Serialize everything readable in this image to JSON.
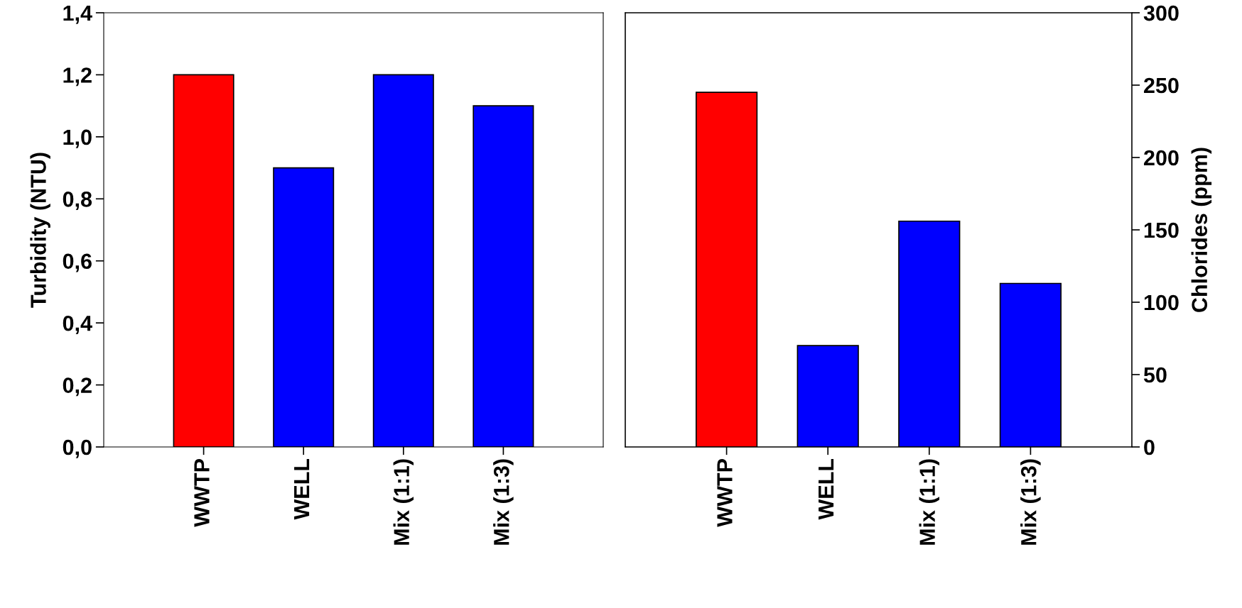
{
  "chart_data": [
    {
      "type": "bar",
      "categories": [
        "WWTP",
        "WELL",
        "Mix (1:1)",
        "Mix (1:3)"
      ],
      "ylabel": "Turbidity (NTU)",
      "series": [
        {
          "values": [
            1.2,
            0.9,
            1.2,
            1.1
          ],
          "colors": [
            "#ff0000",
            "#0000ff",
            "#0000ff",
            "#0000ff"
          ]
        }
      ],
      "ylim": [
        0,
        1.4
      ],
      "yticks": [
        {
          "value": 0,
          "label": "0,0"
        },
        {
          "value": 0.2,
          "label": "0,2"
        },
        {
          "value": 0.4,
          "label": "0,4"
        },
        {
          "value": 0.6,
          "label": "0,6"
        },
        {
          "value": 0.8,
          "label": "0,8"
        },
        {
          "value": 1.0,
          "label": "1,0"
        },
        {
          "value": 1.2,
          "label": "1,2"
        },
        {
          "value": 1.4,
          "label": "1,4"
        }
      ],
      "grid": false,
      "legend": false
    },
    {
      "type": "bar",
      "categories": [
        "WWTP",
        "WELL",
        "Mix (1:1)",
        "Mix (1:3)"
      ],
      "y2label": "Chlorides (ppm)",
      "series": [
        {
          "axis": "y2",
          "values": [
            245,
            70,
            156,
            113
          ],
          "colors": [
            "#ff0000",
            "#0000ff",
            "#0000ff",
            "#0000ff"
          ]
        }
      ],
      "y2lim": [
        0,
        300
      ],
      "y2ticks": [
        0,
        50,
        100,
        150,
        200,
        250,
        300
      ],
      "grid": false,
      "legend": false
    }
  ]
}
